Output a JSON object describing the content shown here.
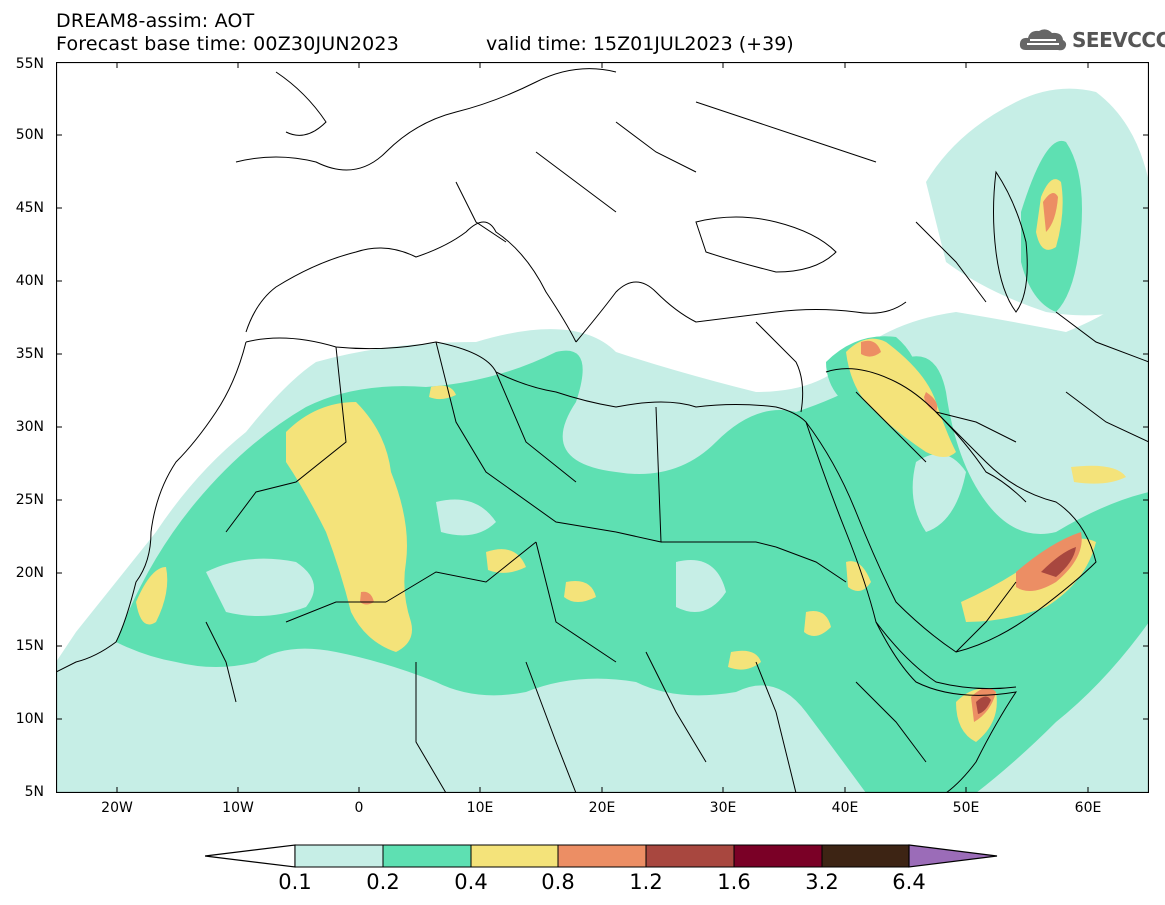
{
  "header": {
    "title": "DREAM8-assim: AOT",
    "base_time": "Forecast base time: 00Z30JUN2023",
    "valid_time": "valid time: 15Z01JUL2023 (+39)"
  },
  "logo": {
    "icon": "cloud-icon",
    "text": "SEEVCCC"
  },
  "map": {
    "lat_labels": [
      "55N",
      "50N",
      "45N",
      "40N",
      "35N",
      "30N",
      "25N",
      "20N",
      "15N",
      "10N",
      "5N"
    ],
    "lon_labels": [
      "20W",
      "10W",
      "0",
      "10E",
      "20E",
      "30E",
      "40E",
      "50E",
      "60E"
    ],
    "extent": {
      "lon_min": -25,
      "lon_max": 65,
      "lat_min": 5,
      "lat_max": 55
    }
  },
  "colorbar": {
    "labels": [
      "0.1",
      "0.2",
      "0.4",
      "0.8",
      "1.2",
      "1.6",
      "3.2",
      "6.4"
    ],
    "colors": [
      "#ffffff",
      "#c6eee6",
      "#5ee0b2",
      "#f4e37a",
      "#ec8e64",
      "#a8473f",
      "#7a0026",
      "#3d2414",
      "#9b6cb8"
    ]
  }
}
